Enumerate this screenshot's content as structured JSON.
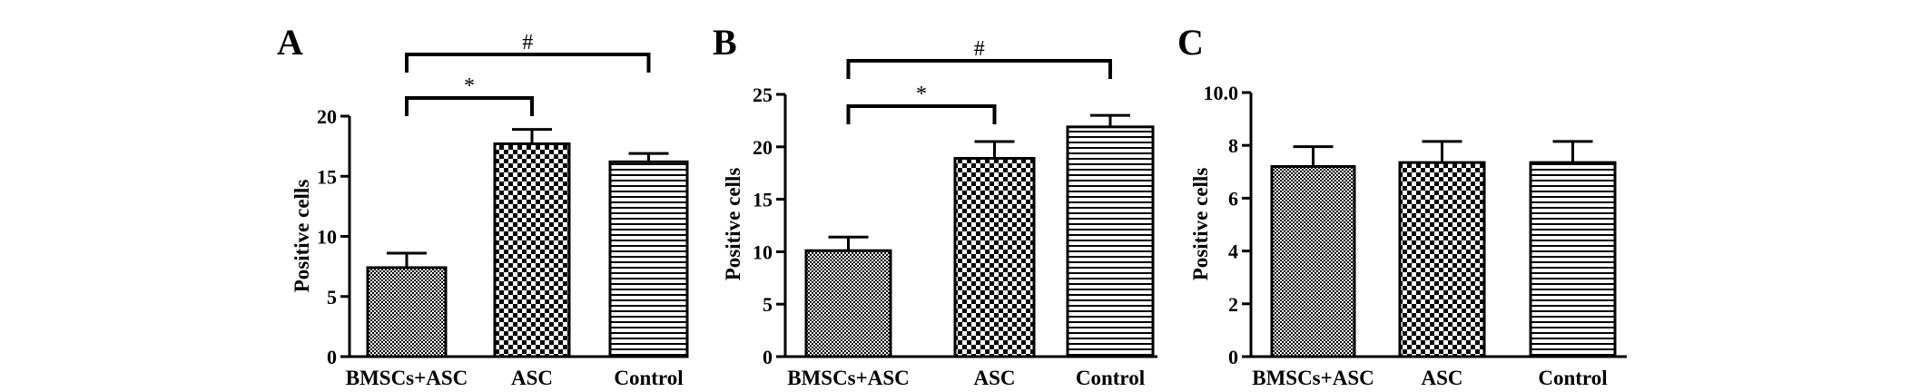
{
  "chart_data": [
    {
      "type": "bar",
      "panel": "A",
      "categories": [
        "BMSCs+ASC",
        "ASC",
        "Control"
      ],
      "values": [
        7.4,
        17.7,
        16.2
      ],
      "errors": [
        1.2,
        1.2,
        0.7
      ],
      "ylabel": "Positive cells",
      "ylim": [
        0,
        20
      ],
      "yticks": [
        "0",
        "5",
        "10",
        "15",
        "20"
      ],
      "significance": [
        {
          "from": 0,
          "to": 1,
          "label": "*"
        },
        {
          "from": 0,
          "to": 2,
          "label": "#"
        }
      ]
    },
    {
      "type": "bar",
      "panel": "B",
      "categories": [
        "BMSCs+ASC",
        "ASC",
        "Control"
      ],
      "values": [
        10.1,
        18.9,
        21.9
      ],
      "errors": [
        1.3,
        1.6,
        1.1
      ],
      "ylabel": "Positive cells",
      "ylim": [
        0,
        25
      ],
      "yticks": [
        "0",
        "5",
        "10",
        "15",
        "20",
        "25"
      ],
      "significance": [
        {
          "from": 0,
          "to": 1,
          "label": "*"
        },
        {
          "from": 0,
          "to": 2,
          "label": "#"
        }
      ]
    },
    {
      "type": "bar",
      "panel": "C",
      "categories": [
        "BMSCs+ASC",
        "ASC",
        "Control"
      ],
      "values": [
        7.2,
        7.35,
        7.35
      ],
      "errors": [
        0.75,
        0.8,
        0.8
      ],
      "ylabel": "Positive cells",
      "ylim": [
        0,
        10
      ],
      "yticks": [
        "0",
        "2",
        "4",
        "6",
        "8",
        "10.0"
      ],
      "significance": []
    }
  ]
}
